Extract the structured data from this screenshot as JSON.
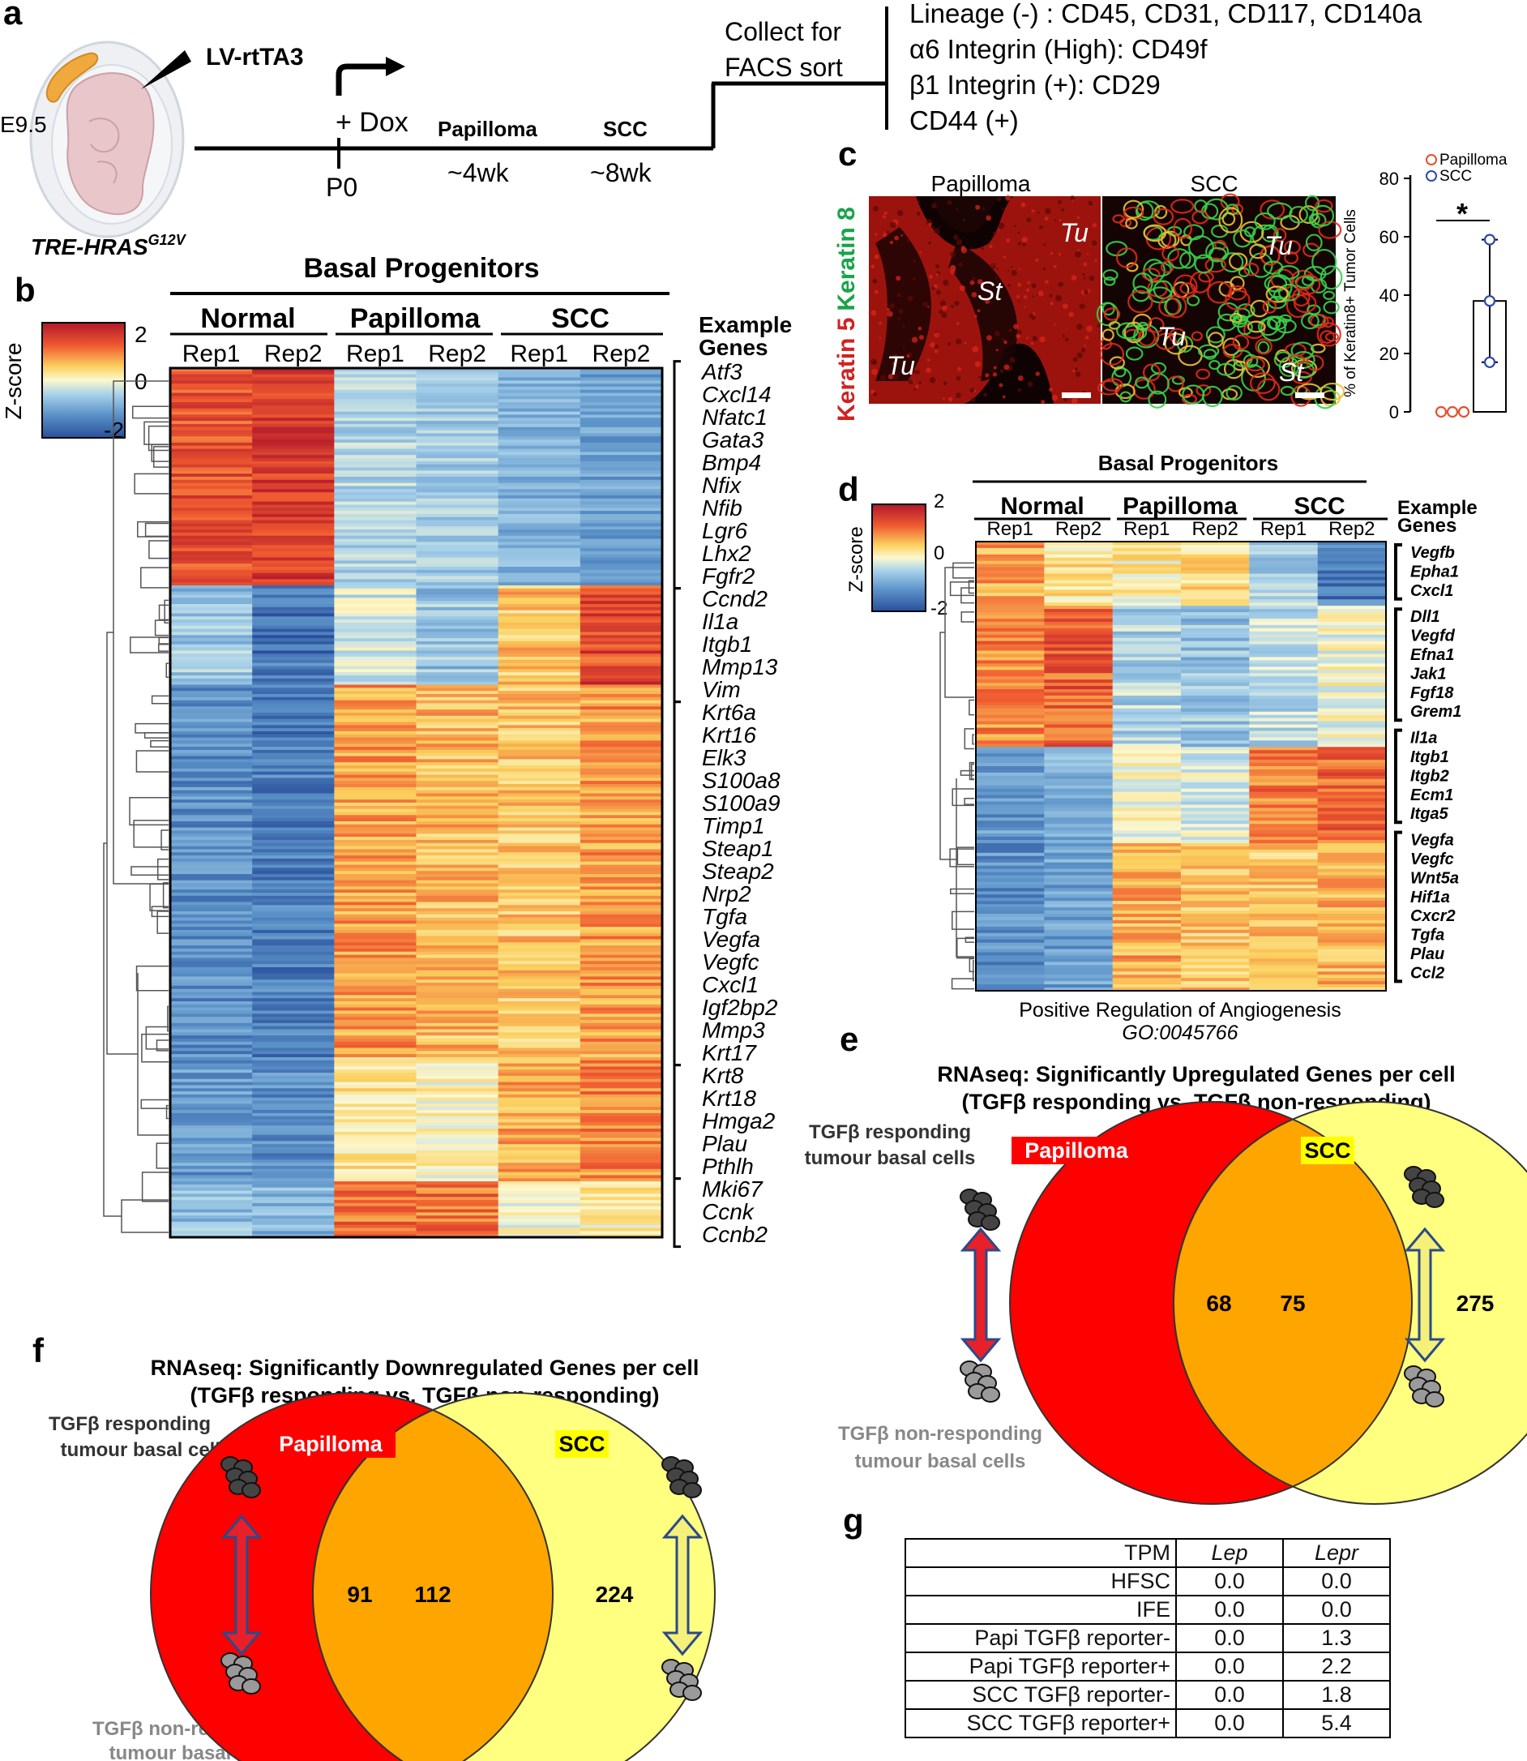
{
  "panel_letters": {
    "a": "a",
    "b": "b",
    "c": "c",
    "d": "d",
    "e": "e",
    "f": "f",
    "g": "g"
  },
  "panel_a": {
    "stage": "E9.5",
    "vector": "LV-rtTA3",
    "transgene": "TRE-HRAS",
    "transgene_sup": "G12V",
    "dox": "+ Dox",
    "p0": "P0",
    "papilloma": "Papilloma",
    "papilloma_time": "~4wk",
    "scc": "SCC",
    "scc_time": "~8wk",
    "collect_1": "Collect for",
    "collect_2": "FACS sort",
    "markers": [
      "Lineage (-) : CD45, CD31, CD117, CD140a",
      "α6 Integrin (High): CD49f",
      "β1 Integrin (+): CD29",
      "CD44 (+)"
    ]
  },
  "panel_b": {
    "title": "Basal Progenitors",
    "groups": [
      "Normal",
      "Papilloma",
      "SCC"
    ],
    "reps": [
      "Rep1",
      "Rep2",
      "Rep1",
      "Rep2",
      "Rep1",
      "Rep2"
    ],
    "zscore_label": "Z-score",
    "scale_ticks": [
      "2",
      "0",
      "-2"
    ],
    "example_1": "Example",
    "example_2": "Genes",
    "gene_groups": [
      [
        "Atf3",
        "Cxcl14",
        "Nfatc1",
        "Gata3",
        "Bmp4",
        "Nfix",
        "Nfib",
        "Lgr6",
        "Lhx2",
        "Fgfr2"
      ],
      [
        "Ccnd2",
        "Il1a",
        "Itgb1",
        "Mmp13",
        "Vim"
      ],
      [
        "Krt6a",
        "Krt16",
        "Elk3",
        "S100a8",
        "S100a9",
        "Timp1",
        "Steap1",
        "Steap2",
        "Nrp2",
        "Tgfa",
        "Vegfa",
        "Vegfc",
        "Cxcl1",
        "Igf2bp2",
        "Mmp3",
        "Krt17"
      ],
      [
        "Krt8",
        "Krt18",
        "Hmga2",
        "Plau",
        "Pthlh"
      ],
      [
        "Mki67",
        "Ccnk",
        "Ccnb2"
      ]
    ]
  },
  "panel_c": {
    "label_papilloma": "Papilloma",
    "label_scc": "SCC",
    "stain_red": "Keratin 5",
    "stain_green": "Keratin 8",
    "region_tu": "Tu",
    "region_st": "St",
    "chart_data": {
      "type": "scatter",
      "ylabel": "% of Keratin8+ Tumor Cells",
      "ylim": [
        0,
        80
      ],
      "yticks": [
        "0",
        "20",
        "40",
        "60",
        "80"
      ],
      "legend": [
        "Papilloma",
        "SCC"
      ],
      "series": [
        {
          "name": "Papilloma",
          "values": [
            0,
            0,
            0
          ],
          "color": "#e8502e"
        },
        {
          "name": "SCC",
          "values": [
            17,
            38,
            59
          ],
          "mean": 38,
          "color": "#2b4aa8"
        }
      ],
      "significance": "*"
    }
  },
  "panel_d": {
    "title": "Basal Progenitors",
    "groups": [
      "Normal",
      "Papilloma",
      "SCC"
    ],
    "reps": [
      "Rep1",
      "Rep2",
      "Rep1",
      "Rep2",
      "Rep1",
      "Rep2"
    ],
    "zscore_label": "Z-score",
    "scale_ticks": [
      "2",
      "0",
      "-2"
    ],
    "example_1": "Example",
    "example_2": "Genes",
    "gene_groups": [
      [
        "Vegfb",
        "Epha1",
        "Cxcl1"
      ],
      [
        "Dll1",
        "Vegfd",
        "Efna1",
        "Jak1",
        "Fgf18",
        "Grem1"
      ],
      [
        "Il1a",
        "Itgb1",
        "Itgb2",
        "Ecm1",
        "Itga5"
      ],
      [
        "Vegfa",
        "Vegfc",
        "Wnt5a",
        "Hif1a",
        "Cxcr2",
        "Tgfa",
        "Plau",
        "Ccl2"
      ]
    ],
    "footer_1": "Positive Regulation of Angiogenesis",
    "footer_2": "GO:0045766"
  },
  "panel_e": {
    "title_1": "RNAseq: Significantly Upregulated Genes per cell",
    "title_2": "(TGFβ responding vs. TGFβ non-responding)",
    "responding_1": "TGFβ responding",
    "responding_2": "tumour basal cells",
    "nonresp_1": "TGFβ non-responding",
    "nonresp_2": "tumour basal cells",
    "label_papilloma": "Papilloma",
    "label_scc": "SCC",
    "venn": {
      "papilloma_only": "68",
      "shared": "75",
      "scc_only": "275"
    }
  },
  "panel_f": {
    "title_1": "RNAseq: Significantly Downregulated Genes per cell",
    "title_2": "(TGFβ responding vs. TGFβ non-responding)",
    "responding_1": "TGFβ responding",
    "responding_2": "tumour basal cells",
    "nonresp_1": "TGFβ non-responding",
    "nonresp_2": "tumour basal cells",
    "label_papilloma": "Papilloma",
    "label_scc": "SCC",
    "venn": {
      "papilloma_only": "91",
      "shared": "112",
      "scc_only": "224"
    }
  },
  "panel_g": {
    "header": [
      "TPM",
      "Lep",
      "Lepr"
    ],
    "rows": [
      [
        "HFSC",
        "0.0",
        "0.0"
      ],
      [
        "IFE",
        "0.0",
        "0.0"
      ],
      [
        "Papi TGFβ reporter-",
        "0.0",
        "1.3"
      ],
      [
        "Papi TGFβ reporter+",
        "0.0",
        "2.2"
      ],
      [
        "SCC TGFβ reporter-",
        "0.0",
        "1.8"
      ],
      [
        "SCC TGFβ reporter+",
        "0.0",
        "5.4"
      ]
    ]
  },
  "colors": {
    "red": "#ff0000",
    "yellow": "#ffff80",
    "overlap": "#ffa500",
    "navy": "#2b4a8a",
    "heat_hi": "#b2182b",
    "heat_lo": "#2a5aa6"
  }
}
